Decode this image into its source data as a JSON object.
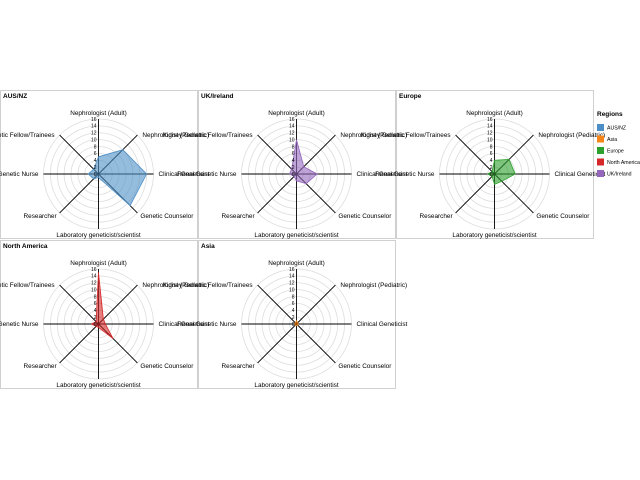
{
  "chart_data": {
    "type": "radar",
    "axes": [
      "Nephrologist (Adult)",
      "Nephrologist (Pediatric)",
      "Clinical Geneticist",
      "Genetic Counselor",
      "Laboratory geneticist/scientist",
      "Researcher",
      "Renal Genetic Nurse",
      "Kidney Genetic Fellow/Trainees"
    ],
    "rlim": [
      0,
      16
    ],
    "ticks": [
      0,
      2,
      4,
      6,
      8,
      10,
      12,
      14,
      16
    ],
    "legend": {
      "title": "Regions",
      "position": "right",
      "items": [
        {
          "label": "AUS/NZ",
          "color": "#4c8fc7"
        },
        {
          "label": "Asia",
          "color": "#f58518"
        },
        {
          "label": "Europe",
          "color": "#2ca02c"
        },
        {
          "label": "North America",
          "color": "#d62728"
        },
        {
          "label": "UK/Ireland",
          "color": "#9467bd"
        }
      ]
    },
    "series": [
      {
        "name": "AUS/NZ",
        "color": "#4c8fc7",
        "values": [
          5,
          10,
          14,
          13,
          1,
          2,
          3,
          2
        ]
      },
      {
        "name": "UK/Ireland",
        "color": "#9467bd",
        "values": [
          10,
          3,
          6,
          4,
          2,
          1,
          2,
          2
        ]
      },
      {
        "name": "Europe",
        "color": "#2ca02c",
        "values": [
          4,
          6,
          6,
          3,
          3,
          1,
          2,
          1
        ]
      },
      {
        "name": "North America",
        "color": "#d62728",
        "values": [
          15,
          2,
          2,
          6,
          1,
          1,
          2,
          1
        ]
      },
      {
        "name": "Asia",
        "color": "#f58518",
        "values": [
          1,
          0.5,
          0.5,
          0.5,
          0.5,
          0.5,
          0.5,
          0.5
        ]
      }
    ]
  }
}
